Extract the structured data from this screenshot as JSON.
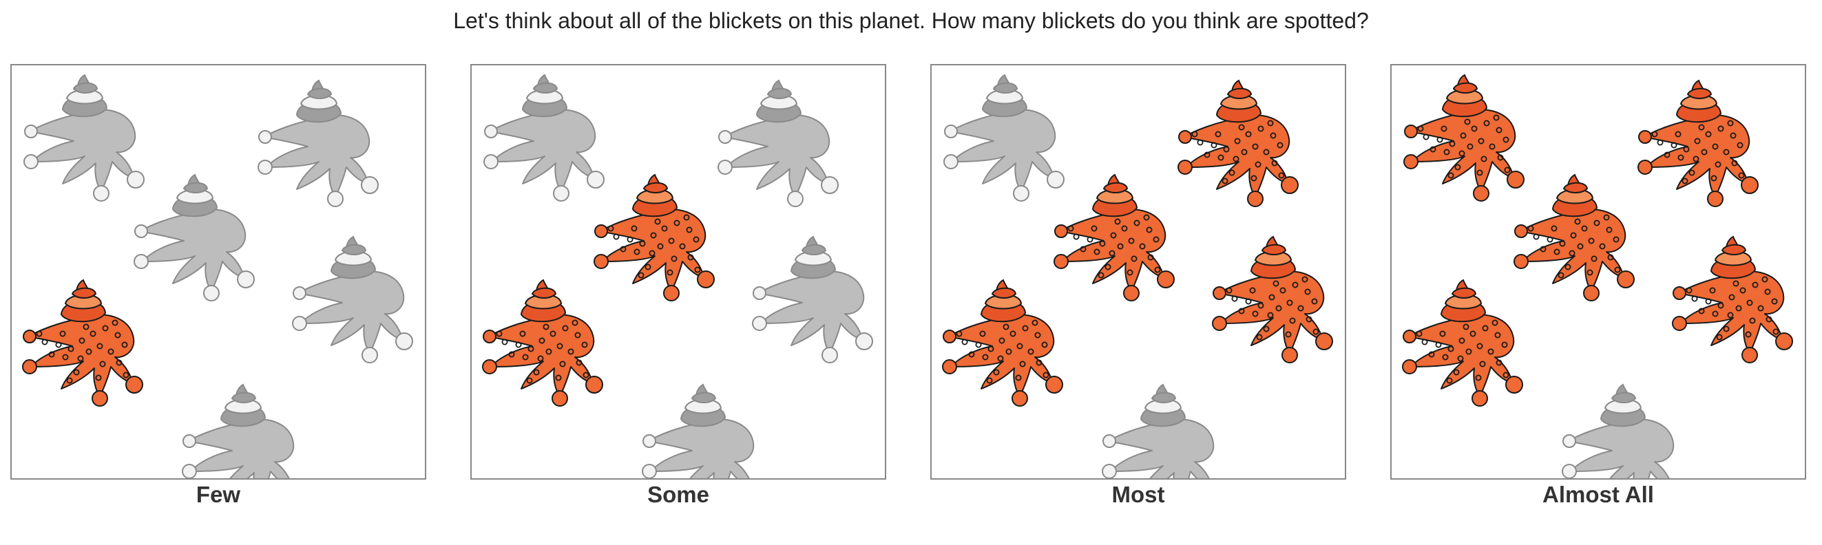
{
  "question": "Let's think about all of the blickets on this planet. How many blickets do you think are spotted?",
  "colors": {
    "spotted_body": "#ef6a34",
    "spotted_hat_top": "#e65528",
    "spotted_hat_band": "#f4925b",
    "spotted_stroke": "#1a1a1a",
    "plain_body": "#bdbdbd",
    "plain_hat_top": "#9e9e9e",
    "plain_hat_band": "#f2f2f2",
    "plain_stroke": "#8a8a8a"
  },
  "options": [
    {
      "label": "Few",
      "spotted": [
        false,
        false,
        false,
        false,
        true,
        false
      ]
    },
    {
      "label": "Some",
      "spotted": [
        false,
        false,
        true,
        false,
        true,
        false
      ]
    },
    {
      "label": "Most",
      "spotted": [
        false,
        true,
        true,
        true,
        true,
        false
      ]
    },
    {
      "label": "Almost All",
      "spotted": [
        true,
        true,
        true,
        true,
        true,
        false
      ]
    }
  ]
}
